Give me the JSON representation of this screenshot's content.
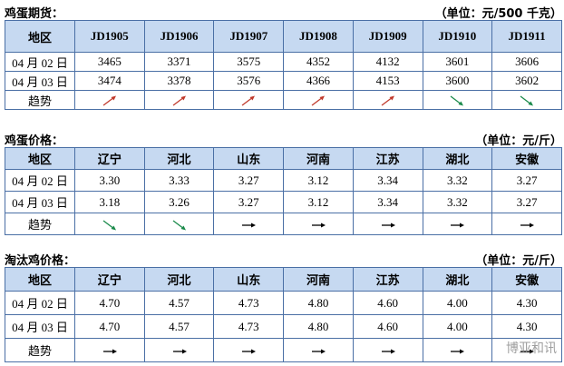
{
  "sections": [
    {
      "title": "鸡蛋期货：",
      "unit": "（单位：元/500 千克）",
      "table": {
        "header": [
          "地区",
          "JD1905",
          "JD1906",
          "JD1907",
          "JD1908",
          "JD1909",
          "JD1910",
          "JD1911"
        ],
        "rows": [
          [
            "04 月 02 日",
            "3465",
            "3371",
            "3575",
            "4352",
            "4132",
            "3601",
            "3606"
          ],
          [
            "04 月 03 日",
            "3474",
            "3378",
            "3576",
            "4366",
            "4153",
            "3600",
            "3602"
          ]
        ],
        "trend_label": "趋势"
      }
    },
    {
      "title": "鸡蛋价格：",
      "unit": "（单位：元/斤）",
      "table": {
        "header": [
          "地区",
          "辽宁",
          "河北",
          "山东",
          "河南",
          "江苏",
          "湖北",
          "安徽"
        ],
        "rows": [
          [
            "04 月 02 日",
            "3.30",
            "3.33",
            "3.27",
            "3.12",
            "3.34",
            "3.32",
            "3.27"
          ],
          [
            "04 月 03 日",
            "3.18",
            "3.26",
            "3.27",
            "3.12",
            "3.34",
            "3.32",
            "3.27"
          ]
        ],
        "trend_label": "趋势"
      }
    },
    {
      "title": "淘汰鸡价格：",
      "unit": "（单位：元/斤）",
      "table": {
        "header": [
          "地区",
          "辽宁",
          "河北",
          "山东",
          "河南",
          "江苏",
          "湖北",
          "安徽"
        ],
        "rows": [
          [
            "04 月 02 日",
            "4.70",
            "4.57",
            "4.73",
            "4.80",
            "4.60",
            "4.00",
            "4.30"
          ],
          [
            "04 月 03 日",
            "4.70",
            "4.57",
            "4.73",
            "4.80",
            "4.60",
            "4.00",
            "4.30"
          ]
        ],
        "trend_label": "趋势"
      }
    }
  ],
  "watermark": "博亚和讯"
}
